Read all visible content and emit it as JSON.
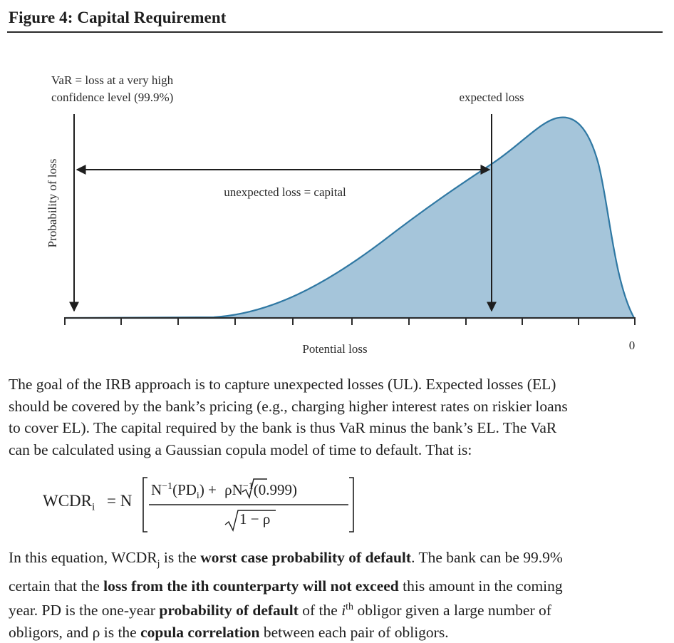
{
  "figure": {
    "title": "Figure 4: Capital Requirement"
  },
  "chart_data": {
    "type": "area",
    "ylabel": "Probability of loss",
    "xlabel": "Potential loss",
    "x_end_tick_label": "0",
    "annotations": {
      "var_label_line1": "VaR = loss at a very high",
      "var_label_line2": "confidence level (99.9%)",
      "expected_loss": "expected loss",
      "unexpected_loss": "unexpected loss = capital"
    },
    "fill_color": "#a5c5da",
    "stroke_color": "#2f78a3"
  },
  "text": {
    "para1_line1": "The goal of the IRB approach is to capture unexpected losses (UL). Expected losses (EL)",
    "para1_line2": "should be covered by the bank’s pricing (e.g., charging higher interest rates on riskier loans",
    "para1_line3": "to cover EL). The capital required by the bank is thus VaR minus the bank’s EL. The VaR",
    "para1_line4": "can be calculated using a Gaussian copula model of time to default. That is:",
    "para2_l1_a": "In this equation, WCDR",
    "para2_l1_sub": "j",
    "para2_l1_b": " is the ",
    "para2_l1_bold": "worst case probability of default",
    "para2_l1_c": ". The bank can be 99.9%",
    "para2_l2_a": "certain that the ",
    "para2_l2_bold": "loss from the ith counterparty will not exceed",
    "para2_l2_c": " this amount in the coming",
    "para2_l3_a": "year. PD is the one-year ",
    "para2_l3_bold": "probability of default",
    "para2_l3_b": " of the ",
    "para2_l3_i": "i",
    "para2_l3_sup": "th",
    "para2_l3_c": " obligor given a large number of",
    "para2_l4_a": "obligors, and ρ is the ",
    "para2_l4_bold": "copula correlation",
    "para2_l4_b": " between each pair of obligors."
  },
  "formula": {
    "lhs": "WCDR",
    "lhs_sub": "i",
    "equals_n": "= N",
    "num_a": "N",
    "num_sup1": "−1",
    "num_b": "(PD",
    "num_sub": "i",
    "num_c": ") + ",
    "num_rho": "ρ",
    "num_d": "N",
    "num_sup2": "−1",
    "num_e": "(0.999)",
    "den": "1 − ρ"
  }
}
